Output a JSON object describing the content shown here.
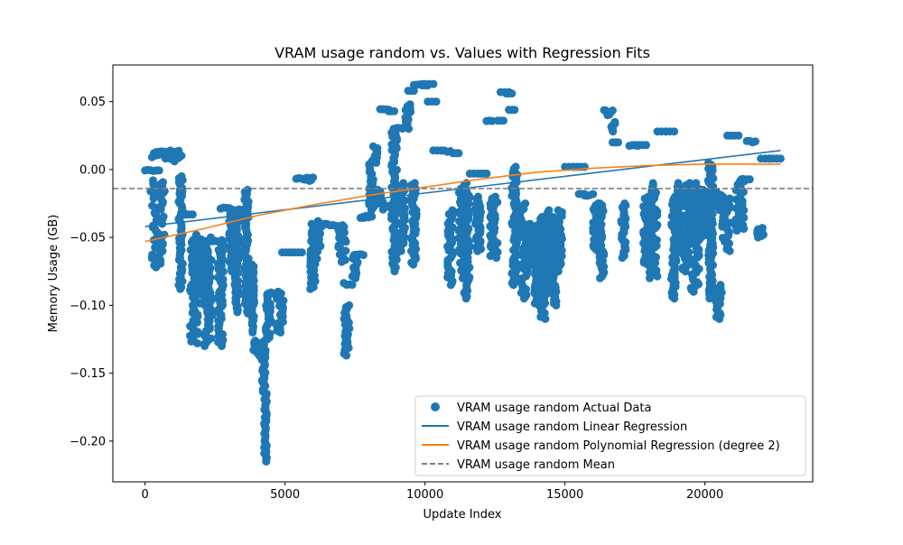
{
  "chart_data": {
    "type": "scatter",
    "title": "VRAM usage random vs. Values with Regression Fits",
    "xlabel": "Update Index",
    "ylabel": "Memory Usage (GB)",
    "xlim": [
      -1150,
      23850
    ],
    "ylim": [
      -0.23,
      0.077
    ],
    "xticks": [
      0,
      5000,
      10000,
      15000,
      20000
    ],
    "xtick_labels": [
      "0",
      "5000",
      "10000",
      "15000",
      "20000"
    ],
    "yticks": [
      0.05,
      0.0,
      -0.05,
      -0.1,
      -0.15,
      -0.2
    ],
    "ytick_labels": [
      "0.05",
      "0.00",
      "−0.05",
      "−0.10",
      "−0.15",
      "−0.20"
    ],
    "grid": false,
    "legend_position": "lower-right",
    "colors": {
      "actual": "#1f77b4",
      "linear": "#1f77b4",
      "poly": "#ff7f0e",
      "mean": "#808080"
    },
    "series": [
      {
        "name": "VRAM usage random Actual Data",
        "kind": "scatter",
        "segments": [
          [
            0,
            500,
            0.0,
            -0.001
          ],
          [
            200,
            700,
            -0.008,
            -0.072
          ],
          [
            200,
            700,
            -0.02,
            -0.01
          ],
          [
            250,
            800,
            0.008,
            0.013
          ],
          [
            400,
            1200,
            0.012,
            0.014
          ],
          [
            600,
            1200,
            0.013,
            0.013
          ],
          [
            900,
            1200,
            0.012,
            0.006
          ],
          [
            1100,
            1300,
            0.009,
            0.011
          ],
          [
            1200,
            1350,
            -0.005,
            -0.088
          ],
          [
            1400,
            1700,
            -0.033,
            -0.034
          ],
          [
            1600,
            1900,
            -0.048,
            -0.128
          ],
          [
            1800,
            2000,
            -0.05,
            -0.052
          ],
          [
            1900,
            2200,
            -0.055,
            -0.1
          ],
          [
            2100,
            2400,
            -0.05,
            -0.13
          ],
          [
            2300,
            2700,
            -0.052,
            -0.053
          ],
          [
            2600,
            2800,
            -0.052,
            -0.13
          ],
          [
            2700,
            3100,
            -0.028,
            -0.03
          ],
          [
            3000,
            3200,
            -0.03,
            -0.075
          ],
          [
            3200,
            3350,
            -0.03,
            -0.105
          ],
          [
            3350,
            3600,
            -0.028,
            -0.03
          ],
          [
            3550,
            3700,
            -0.015,
            -0.106
          ],
          [
            3800,
            3900,
            -0.07,
            -0.12
          ],
          [
            3850,
            4050,
            -0.126,
            -0.133
          ],
          [
            4000,
            4200,
            -0.13,
            -0.14
          ],
          [
            4150,
            4300,
            -0.126,
            -0.165
          ],
          [
            4250,
            4350,
            -0.165,
            -0.215
          ],
          [
            4300,
            4500,
            -0.092,
            -0.125
          ],
          [
            4400,
            4800,
            -0.09,
            -0.092
          ],
          [
            4700,
            4950,
            -0.09,
            -0.12
          ],
          [
            4900,
            5600,
            -0.061,
            -0.061
          ],
          [
            5400,
            5900,
            -0.006,
            -0.008
          ],
          [
            5700,
            6000,
            -0.005,
            -0.01
          ],
          [
            5900,
            6100,
            -0.04,
            -0.088
          ],
          [
            6000,
            6300,
            -0.038,
            -0.067
          ],
          [
            6300,
            6500,
            -0.04,
            -0.043
          ],
          [
            6500,
            6900,
            -0.04,
            -0.042
          ],
          [
            6900,
            7200,
            -0.041,
            -0.068
          ],
          [
            7100,
            7300,
            -0.1,
            -0.137
          ],
          [
            7100,
            7400,
            -0.083,
            -0.085
          ],
          [
            7400,
            7600,
            -0.063,
            -0.08
          ],
          [
            7500,
            7800,
            -0.062,
            -0.063
          ],
          [
            7700,
            8000,
            -0.035,
            -0.037
          ],
          [
            7800,
            8100,
            -0.034,
            -0.035
          ],
          [
            8000,
            8200,
            0.008,
            -0.03
          ],
          [
            8100,
            8300,
            0.017,
            0.005
          ],
          [
            8300,
            8500,
            -0.015,
            -0.025
          ],
          [
            8400,
            8700,
            0.045,
            0.044
          ],
          [
            8500,
            8900,
            -0.025,
            -0.03
          ],
          [
            8700,
            8900,
            0.043,
            0.043
          ],
          [
            8800,
            9000,
            0.03,
            -0.075
          ],
          [
            9000,
            9200,
            0.031,
            0.03
          ],
          [
            9100,
            9300,
            -0.01,
            -0.06
          ],
          [
            9300,
            9500,
            0.048,
            0.03
          ],
          [
            9400,
            9600,
            0.058,
            0.058
          ],
          [
            9500,
            9700,
            -0.01,
            -0.07
          ],
          [
            9600,
            9900,
            0.062,
            0.063
          ],
          [
            9900,
            10100,
            0.062,
            0.062
          ],
          [
            10000,
            10300,
            0.063,
            0.063
          ],
          [
            10100,
            10400,
            0.05,
            0.05
          ],
          [
            10300,
            10600,
            0.014,
            0.014
          ],
          [
            10600,
            10900,
            0.013,
            0.014
          ],
          [
            10800,
            11000,
            -0.03,
            -0.085
          ],
          [
            11000,
            11200,
            0.012,
            0.012
          ],
          [
            11200,
            11500,
            -0.01,
            -0.08
          ],
          [
            11400,
            11600,
            -0.015,
            -0.095
          ],
          [
            11600,
            11900,
            -0.003,
            -0.003
          ],
          [
            11800,
            12000,
            -0.02,
            -0.06
          ],
          [
            12000,
            12200,
            -0.003,
            -0.003
          ],
          [
            12200,
            12400,
            0.035,
            0.036
          ],
          [
            12300,
            12600,
            -0.02,
            -0.065
          ],
          [
            12600,
            12800,
            0.036,
            0.036
          ],
          [
            12700,
            13000,
            0.057,
            0.057
          ],
          [
            12900,
            13100,
            0.056,
            0.056
          ],
          [
            13000,
            13200,
            0.044,
            0.044
          ],
          [
            13100,
            13300,
            0.002,
            -0.085
          ],
          [
            13300,
            13600,
            -0.025,
            -0.05
          ],
          [
            13400,
            13700,
            -0.04,
            -0.095
          ],
          [
            13700,
            13900,
            -0.04,
            -0.07
          ],
          [
            13900,
            14100,
            -0.04,
            -0.1
          ],
          [
            14100,
            14300,
            -0.035,
            -0.11
          ],
          [
            14300,
            14500,
            -0.03,
            -0.09
          ],
          [
            14500,
            14700,
            -0.035,
            -0.1
          ],
          [
            14700,
            14900,
            -0.03,
            -0.075
          ],
          [
            15000,
            15300,
            0.002,
            0.002
          ],
          [
            15300,
            15700,
            0.002,
            0.002
          ],
          [
            15500,
            15700,
            -0.018,
            -0.018
          ],
          [
            15700,
            16000,
            -0.018,
            -0.02
          ],
          [
            16000,
            16200,
            -0.025,
            -0.06
          ],
          [
            16200,
            16400,
            -0.025,
            -0.08
          ],
          [
            16400,
            16700,
            0.04,
            0.044
          ],
          [
            16600,
            16800,
            0.028,
            0.035
          ],
          [
            16700,
            16900,
            0.02,
            0.02
          ],
          [
            17000,
            17200,
            -0.025,
            -0.065
          ],
          [
            17300,
            17600,
            0.017,
            0.018
          ],
          [
            17500,
            17900,
            0.018,
            0.018
          ],
          [
            17800,
            18000,
            -0.02,
            -0.07
          ],
          [
            18000,
            18300,
            -0.01,
            -0.08
          ],
          [
            18300,
            18600,
            0.028,
            0.028
          ],
          [
            18600,
            18900,
            0.028,
            0.028
          ],
          [
            18800,
            19000,
            -0.02,
            -0.095
          ],
          [
            19000,
            19200,
            -0.01,
            -0.06
          ],
          [
            19200,
            19500,
            -0.01,
            -0.075
          ],
          [
            19500,
            19800,
            -0.01,
            -0.09
          ],
          [
            19800,
            20100,
            -0.015,
            -0.05
          ],
          [
            20100,
            20300,
            0.005,
            -0.095
          ],
          [
            20300,
            20600,
            -0.015,
            -0.03
          ],
          [
            20400,
            20600,
            -0.085,
            -0.11
          ],
          [
            20600,
            20900,
            -0.02,
            -0.06
          ],
          [
            20800,
            21200,
            0.025,
            0.025
          ],
          [
            21100,
            21400,
            -0.007,
            -0.045
          ],
          [
            21300,
            21600,
            -0.007,
            -0.009
          ],
          [
            21500,
            21800,
            0.02,
            0.021
          ],
          [
            21800,
            22100,
            -0.043,
            -0.05
          ],
          [
            22000,
            22300,
            0.008,
            0.008
          ],
          [
            22300,
            22700,
            0.008,
            0.008
          ]
        ]
      },
      {
        "name": "VRAM usage random Linear Regression",
        "kind": "line",
        "x": [
          0,
          22700
        ],
        "y": [
          -0.042,
          0.014
        ]
      },
      {
        "name": "VRAM usage random Polynomial Regression (degree 2)",
        "kind": "line",
        "x": [
          0,
          2000,
          4000,
          6000,
          8000,
          10000,
          12000,
          14000,
          16000,
          18000,
          20000,
          22700
        ],
        "y": [
          -0.053,
          -0.044,
          -0.034,
          -0.026,
          -0.019,
          -0.013,
          -0.007,
          -0.002,
          0.001,
          0.003,
          0.004,
          0.004
        ]
      },
      {
        "name": "VRAM usage random Mean",
        "kind": "hline",
        "y": -0.014
      }
    ]
  }
}
